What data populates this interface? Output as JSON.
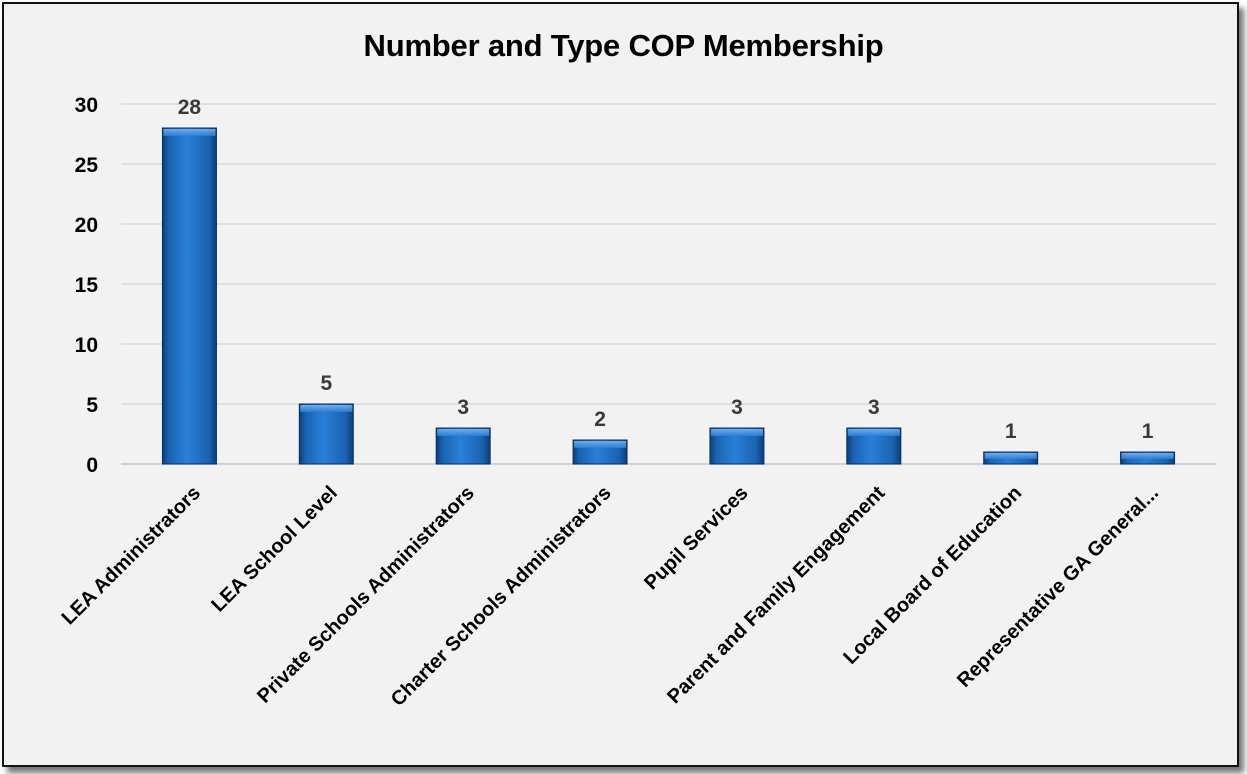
{
  "chart_data": {
    "type": "bar",
    "title": "Number and Type COP Membership",
    "categories": [
      "LEA Administrators",
      "LEA School Level",
      "Private Schools Administrators",
      "Charter Schools Administrators",
      "Pupil Services",
      "Parent and Family Engagement",
      "Local Board of Education",
      "Representative GA General..."
    ],
    "values": [
      28,
      5,
      3,
      2,
      3,
      3,
      1,
      1
    ],
    "data_labels": [
      "28",
      "5",
      "3",
      "2",
      "3",
      "3",
      "1",
      "1"
    ],
    "ylim": [
      0,
      30
    ],
    "yticks": [
      "0",
      "5",
      "10",
      "15",
      "20",
      "25",
      "30"
    ],
    "grid": true,
    "legend": "none",
    "bar_color": "#1c6cc0"
  }
}
